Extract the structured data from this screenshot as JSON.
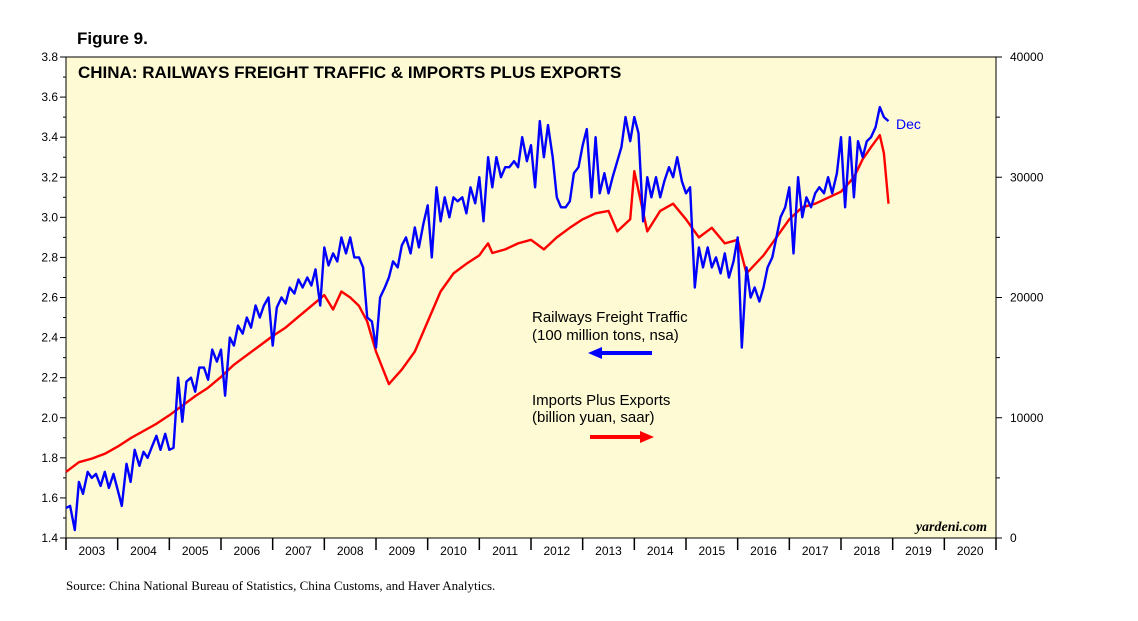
{
  "figure_label": "Figure 9.",
  "source_note": "Source: China National Bureau of Statistics, China Customs, and Haver Analytics.",
  "brand": "yardeni.com",
  "colors": {
    "background": "#fdfad4",
    "railways": "#0000ff",
    "trade": "#ff0000"
  },
  "chart_data": {
    "type": "line",
    "title": "CHINA: RAILWAYS FREIGHT TRAFFIC & IMPORTS PLUS EXPORTS",
    "x_range": [
      2003,
      2021
    ],
    "x_tick_labels": [
      "2003",
      "2004",
      "2005",
      "2006",
      "2007",
      "2008",
      "2009",
      "2010",
      "2011",
      "2012",
      "2013",
      "2014",
      "2015",
      "2016",
      "2017",
      "2018",
      "2019",
      "2020"
    ],
    "left_axis": {
      "range": [
        1.4,
        3.8
      ],
      "tick_labels": [
        "1.4",
        "1.6",
        "1.8",
        "2.0",
        "2.2",
        "2.4",
        "2.6",
        "2.8",
        "3.0",
        "3.2",
        "3.4",
        "3.6",
        "3.8"
      ]
    },
    "right_axis": {
      "range": [
        0,
        40000
      ],
      "tick_labels": [
        "0",
        "10000",
        "20000",
        "30000",
        "40000"
      ]
    },
    "end_label": "Dec",
    "legend": {
      "railways_line1": "Railways Freight Traffic",
      "railways_line2": "(100 million tons, nsa)",
      "trade_line1": "Imports Plus Exports",
      "trade_line2": "(billion yuan, saar)"
    },
    "series": [
      {
        "name": "Railways Freight Traffic",
        "axis": "left",
        "color": "#0000ff",
        "points": [
          [
            2003.0,
            1.55
          ],
          [
            2003.08,
            1.56
          ],
          [
            2003.17,
            1.44
          ],
          [
            2003.25,
            1.68
          ],
          [
            2003.33,
            1.62
          ],
          [
            2003.42,
            1.73
          ],
          [
            2003.5,
            1.7
          ],
          [
            2003.58,
            1.72
          ],
          [
            2003.67,
            1.66
          ],
          [
            2003.75,
            1.73
          ],
          [
            2003.83,
            1.65
          ],
          [
            2003.92,
            1.72
          ],
          [
            2004.0,
            1.64
          ],
          [
            2004.08,
            1.56
          ],
          [
            2004.17,
            1.77
          ],
          [
            2004.25,
            1.68
          ],
          [
            2004.33,
            1.84
          ],
          [
            2004.42,
            1.76
          ],
          [
            2004.5,
            1.83
          ],
          [
            2004.58,
            1.8
          ],
          [
            2004.67,
            1.86
          ],
          [
            2004.75,
            1.91
          ],
          [
            2004.83,
            1.84
          ],
          [
            2004.92,
            1.92
          ],
          [
            2005.0,
            1.84
          ],
          [
            2005.08,
            1.85
          ],
          [
            2005.17,
            2.2
          ],
          [
            2005.25,
            1.98
          ],
          [
            2005.33,
            2.18
          ],
          [
            2005.42,
            2.2
          ],
          [
            2005.5,
            2.13
          ],
          [
            2005.58,
            2.25
          ],
          [
            2005.67,
            2.25
          ],
          [
            2005.75,
            2.19
          ],
          [
            2005.83,
            2.34
          ],
          [
            2005.92,
            2.28
          ],
          [
            2006.0,
            2.34
          ],
          [
            2006.08,
            2.11
          ],
          [
            2006.17,
            2.4
          ],
          [
            2006.25,
            2.36
          ],
          [
            2006.33,
            2.46
          ],
          [
            2006.42,
            2.42
          ],
          [
            2006.5,
            2.5
          ],
          [
            2006.58,
            2.45
          ],
          [
            2006.67,
            2.56
          ],
          [
            2006.75,
            2.5
          ],
          [
            2006.83,
            2.56
          ],
          [
            2006.92,
            2.6
          ],
          [
            2007.0,
            2.36
          ],
          [
            2007.08,
            2.55
          ],
          [
            2007.17,
            2.6
          ],
          [
            2007.25,
            2.57
          ],
          [
            2007.33,
            2.65
          ],
          [
            2007.42,
            2.62
          ],
          [
            2007.5,
            2.69
          ],
          [
            2007.58,
            2.65
          ],
          [
            2007.67,
            2.7
          ],
          [
            2007.75,
            2.66
          ],
          [
            2007.83,
            2.74
          ],
          [
            2007.92,
            2.56
          ],
          [
            2008.0,
            2.85
          ],
          [
            2008.08,
            2.76
          ],
          [
            2008.17,
            2.82
          ],
          [
            2008.25,
            2.78
          ],
          [
            2008.33,
            2.9
          ],
          [
            2008.42,
            2.82
          ],
          [
            2008.5,
            2.9
          ],
          [
            2008.58,
            2.8
          ],
          [
            2008.67,
            2.8
          ],
          [
            2008.75,
            2.75
          ],
          [
            2008.83,
            2.5
          ],
          [
            2008.92,
            2.48
          ],
          [
            2009.0,
            2.35
          ],
          [
            2009.08,
            2.6
          ],
          [
            2009.17,
            2.65
          ],
          [
            2009.25,
            2.7
          ],
          [
            2009.33,
            2.78
          ],
          [
            2009.42,
            2.75
          ],
          [
            2009.5,
            2.86
          ],
          [
            2009.58,
            2.9
          ],
          [
            2009.67,
            2.82
          ],
          [
            2009.75,
            2.95
          ],
          [
            2009.83,
            2.85
          ],
          [
            2009.92,
            2.97
          ],
          [
            2010.0,
            3.06
          ],
          [
            2010.08,
            2.8
          ],
          [
            2010.17,
            3.15
          ],
          [
            2010.25,
            2.98
          ],
          [
            2010.33,
            3.1
          ],
          [
            2010.42,
            3.0
          ],
          [
            2010.5,
            3.1
          ],
          [
            2010.58,
            3.08
          ],
          [
            2010.67,
            3.1
          ],
          [
            2010.75,
            3.02
          ],
          [
            2010.83,
            3.15
          ],
          [
            2010.92,
            3.07
          ],
          [
            2011.0,
            3.2
          ],
          [
            2011.08,
            2.98
          ],
          [
            2011.17,
            3.3
          ],
          [
            2011.25,
            3.15
          ],
          [
            2011.33,
            3.3
          ],
          [
            2011.42,
            3.2
          ],
          [
            2011.5,
            3.25
          ],
          [
            2011.58,
            3.25
          ],
          [
            2011.67,
            3.28
          ],
          [
            2011.75,
            3.25
          ],
          [
            2011.83,
            3.4
          ],
          [
            2011.92,
            3.28
          ],
          [
            2012.0,
            3.36
          ],
          [
            2012.08,
            3.15
          ],
          [
            2012.17,
            3.48
          ],
          [
            2012.25,
            3.3
          ],
          [
            2012.33,
            3.46
          ],
          [
            2012.42,
            3.3
          ],
          [
            2012.5,
            3.1
          ],
          [
            2012.58,
            3.05
          ],
          [
            2012.67,
            3.05
          ],
          [
            2012.75,
            3.08
          ],
          [
            2012.83,
            3.22
          ],
          [
            2012.92,
            3.25
          ],
          [
            2013.0,
            3.36
          ],
          [
            2013.08,
            3.44
          ],
          [
            2013.17,
            3.1
          ],
          [
            2013.25,
            3.4
          ],
          [
            2013.33,
            3.12
          ],
          [
            2013.42,
            3.22
          ],
          [
            2013.5,
            3.12
          ],
          [
            2013.58,
            3.2
          ],
          [
            2013.67,
            3.28
          ],
          [
            2013.75,
            3.35
          ],
          [
            2013.83,
            3.5
          ],
          [
            2013.92,
            3.38
          ],
          [
            2014.0,
            3.5
          ],
          [
            2014.08,
            3.42
          ],
          [
            2014.17,
            2.98
          ],
          [
            2014.25,
            3.2
          ],
          [
            2014.33,
            3.1
          ],
          [
            2014.42,
            3.2
          ],
          [
            2014.5,
            3.1
          ],
          [
            2014.58,
            3.18
          ],
          [
            2014.67,
            3.25
          ],
          [
            2014.75,
            3.2
          ],
          [
            2014.83,
            3.3
          ],
          [
            2014.92,
            3.18
          ],
          [
            2015.0,
            3.12
          ],
          [
            2015.08,
            3.15
          ],
          [
            2015.17,
            2.65
          ],
          [
            2015.25,
            2.85
          ],
          [
            2015.33,
            2.75
          ],
          [
            2015.42,
            2.85
          ],
          [
            2015.5,
            2.75
          ],
          [
            2015.58,
            2.8
          ],
          [
            2015.67,
            2.72
          ],
          [
            2015.75,
            2.82
          ],
          [
            2015.83,
            2.7
          ],
          [
            2015.92,
            2.78
          ],
          [
            2016.0,
            2.9
          ],
          [
            2016.08,
            2.35
          ],
          [
            2016.17,
            2.75
          ],
          [
            2016.25,
            2.6
          ],
          [
            2016.33,
            2.65
          ],
          [
            2016.42,
            2.58
          ],
          [
            2016.5,
            2.65
          ],
          [
            2016.58,
            2.75
          ],
          [
            2016.67,
            2.8
          ],
          [
            2016.75,
            2.9
          ],
          [
            2016.83,
            3.0
          ],
          [
            2016.92,
            3.05
          ],
          [
            2017.0,
            3.15
          ],
          [
            2017.08,
            2.82
          ],
          [
            2017.17,
            3.2
          ],
          [
            2017.25,
            3.0
          ],
          [
            2017.33,
            3.1
          ],
          [
            2017.42,
            3.05
          ],
          [
            2017.5,
            3.12
          ],
          [
            2017.58,
            3.15
          ],
          [
            2017.67,
            3.12
          ],
          [
            2017.75,
            3.2
          ],
          [
            2017.83,
            3.12
          ],
          [
            2017.92,
            3.22
          ],
          [
            2018.0,
            3.4
          ],
          [
            2018.08,
            3.05
          ],
          [
            2018.17,
            3.4
          ],
          [
            2018.25,
            3.1
          ],
          [
            2018.33,
            3.38
          ],
          [
            2018.42,
            3.3
          ],
          [
            2018.5,
            3.38
          ],
          [
            2018.58,
            3.4
          ],
          [
            2018.67,
            3.45
          ],
          [
            2018.75,
            3.55
          ],
          [
            2018.83,
            3.5
          ],
          [
            2018.92,
            3.48
          ]
        ]
      },
      {
        "name": "Imports Plus Exports",
        "axis": "right",
        "color": "#ff0000",
        "points": [
          [
            2003.0,
            5500
          ],
          [
            2003.25,
            6300
          ],
          [
            2003.5,
            6600
          ],
          [
            2003.75,
            7000
          ],
          [
            2004.0,
            7600
          ],
          [
            2004.25,
            8300
          ],
          [
            2004.5,
            8900
          ],
          [
            2004.75,
            9500
          ],
          [
            2005.0,
            10200
          ],
          [
            2005.25,
            11000
          ],
          [
            2005.5,
            11800
          ],
          [
            2005.75,
            12500
          ],
          [
            2006.0,
            13400
          ],
          [
            2006.25,
            14400
          ],
          [
            2006.5,
            15200
          ],
          [
            2006.75,
            16000
          ],
          [
            2007.0,
            16800
          ],
          [
            2007.25,
            17500
          ],
          [
            2007.5,
            18400
          ],
          [
            2007.75,
            19300
          ],
          [
            2008.0,
            20200
          ],
          [
            2008.17,
            19000
          ],
          [
            2008.33,
            20500
          ],
          [
            2008.5,
            20000
          ],
          [
            2008.67,
            19300
          ],
          [
            2008.83,
            18000
          ],
          [
            2009.0,
            15500
          ],
          [
            2009.25,
            12800
          ],
          [
            2009.5,
            14000
          ],
          [
            2009.75,
            15500
          ],
          [
            2010.0,
            18000
          ],
          [
            2010.25,
            20500
          ],
          [
            2010.5,
            22000
          ],
          [
            2010.75,
            22800
          ],
          [
            2011.0,
            23500
          ],
          [
            2011.08,
            24000
          ],
          [
            2011.17,
            24500
          ],
          [
            2011.25,
            23700
          ],
          [
            2011.5,
            24000
          ],
          [
            2011.75,
            24500
          ],
          [
            2012.0,
            24800
          ],
          [
            2012.25,
            24000
          ],
          [
            2012.5,
            25000
          ],
          [
            2012.75,
            25800
          ],
          [
            2013.0,
            26500
          ],
          [
            2013.25,
            27000
          ],
          [
            2013.5,
            27200
          ],
          [
            2013.67,
            25500
          ],
          [
            2013.92,
            26500
          ],
          [
            2014.0,
            30500
          ],
          [
            2014.25,
            25500
          ],
          [
            2014.5,
            27200
          ],
          [
            2014.75,
            27800
          ],
          [
            2015.0,
            26500
          ],
          [
            2015.25,
            25000
          ],
          [
            2015.5,
            25800
          ],
          [
            2015.75,
            24500
          ],
          [
            2016.0,
            24800
          ],
          [
            2016.17,
            22000
          ],
          [
            2016.5,
            23500
          ],
          [
            2016.75,
            25000
          ],
          [
            2017.0,
            26500
          ],
          [
            2017.25,
            27500
          ],
          [
            2017.5,
            27800
          ],
          [
            2017.75,
            28300
          ],
          [
            2018.0,
            28800
          ],
          [
            2018.25,
            30000
          ],
          [
            2018.42,
            31500
          ],
          [
            2018.58,
            32500
          ],
          [
            2018.75,
            33500
          ],
          [
            2018.83,
            32000
          ],
          [
            2018.92,
            27800
          ]
        ]
      }
    ]
  }
}
